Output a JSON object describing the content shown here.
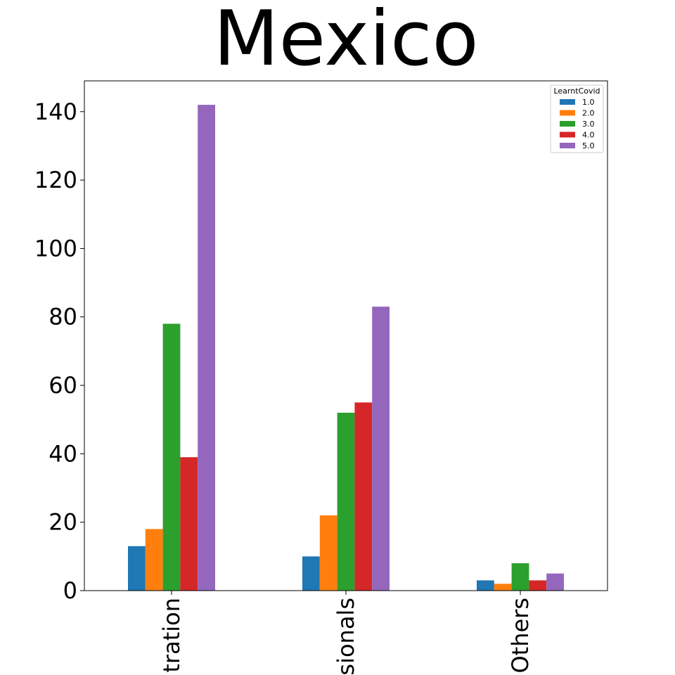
{
  "chart_data": {
    "type": "bar",
    "title": "Mexico",
    "categories": [
      "tration",
      "sionals",
      "Others"
    ],
    "ylim": [
      0,
      149
    ],
    "yticks": [
      "0",
      "20",
      "40",
      "60",
      "80",
      "100",
      "120",
      "140"
    ],
    "grid": false,
    "legend": {
      "title": "LearntCovid",
      "placement": "top-right"
    },
    "series": [
      {
        "name": "1.0",
        "color": "#1f77b4",
        "values": [
          13,
          10,
          3
        ]
      },
      {
        "name": "2.0",
        "color": "#ff7f0e",
        "values": [
          18,
          22,
          2
        ]
      },
      {
        "name": "3.0",
        "color": "#2ca02c",
        "values": [
          78,
          52,
          8
        ]
      },
      {
        "name": "4.0",
        "color": "#d62728",
        "values": [
          39,
          55,
          3
        ]
      },
      {
        "name": "5.0",
        "color": "#9467bd",
        "values": [
          142,
          83,
          5
        ]
      }
    ]
  }
}
